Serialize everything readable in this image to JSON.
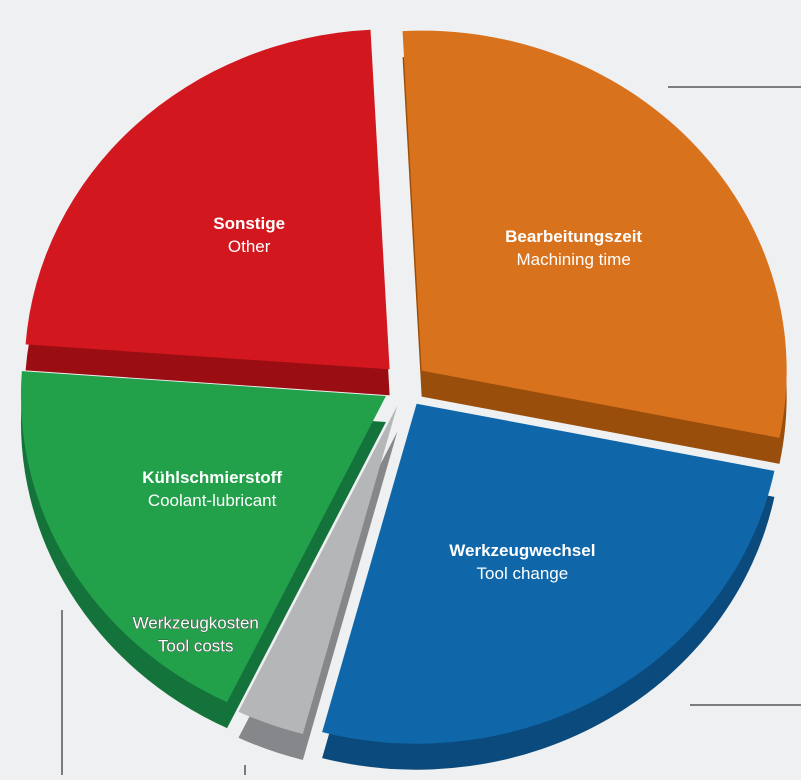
{
  "chart_data": {
    "type": "pie",
    "categories": [
      "Bearbeitungszeit",
      "Werkzeugwechsel",
      "Werkzeugkosten",
      "Kühlschmierstoff",
      "Sonstige"
    ],
    "categories_en": [
      "Machining time",
      "Tool change",
      "Tool costs",
      "Coolant-lubricant",
      "Other"
    ],
    "values": [
      29,
      26,
      3,
      19,
      23
    ],
    "colors": [
      "#d9721c",
      "#0f67a9",
      "#b5b6b8",
      "#22a04a",
      "#d3171f"
    ],
    "side_colors": [
      "#9a4e0c",
      "#0a4a7c",
      "#86878a",
      "#14733a",
      "#9a0e13"
    ]
  }
}
